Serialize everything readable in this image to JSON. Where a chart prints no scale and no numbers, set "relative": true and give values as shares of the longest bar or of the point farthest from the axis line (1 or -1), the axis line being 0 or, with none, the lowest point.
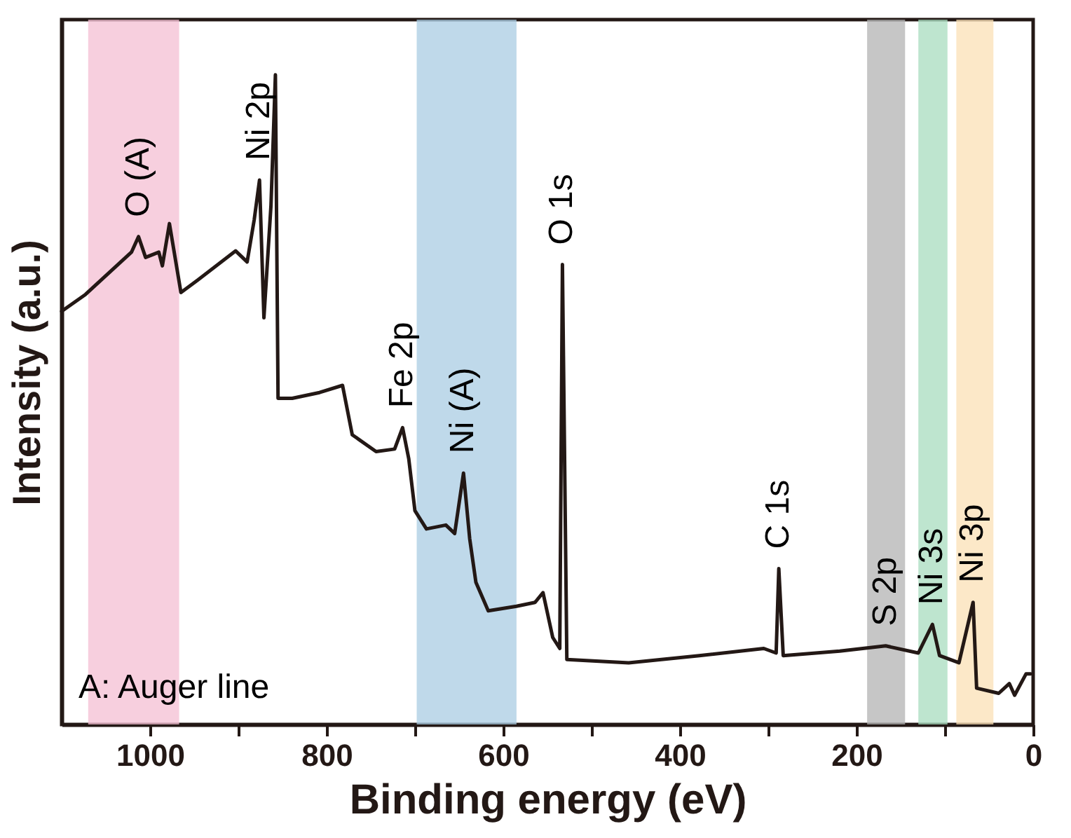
{
  "chart_data": {
    "type": "line",
    "relative": true,
    "xlabel": "Binding energy (eV)",
    "ylabel": "Intensity (a.u.)",
    "xlim": [
      1100,
      0
    ],
    "xticks": [
      1000,
      {
        "value": 900,
        "label": null
      },
      800,
      {
        "value": 700,
        "label": null
      },
      600,
      {
        "value": 500,
        "label": null
      },
      400,
      {
        "value": 300,
        "label": null
      },
      200,
      {
        "value": 100,
        "label": null
      },
      0
    ],
    "x": [
      1100,
      1073,
      1021,
      1013,
      1005,
      990,
      986,
      978,
      965,
      946,
      903,
      890,
      882,
      876,
      871,
      863,
      858,
      855,
      839,
      808,
      782,
      771,
      744,
      723,
      714,
      707,
      700,
      687,
      665,
      655,
      645,
      638,
      631,
      617,
      585,
      564,
      555,
      544,
      536,
      533,
      528,
      458,
      378,
      305,
      291,
      288,
      283,
      219,
      167,
      130,
      114,
      106,
      84,
      68,
      64,
      39,
      27,
      21,
      8,
      3
    ],
    "series": [
      {
        "color": "#231815",
        "values": [
          0.636,
          0.662,
          0.727,
          0.751,
          0.719,
          0.727,
          0.706,
          0.771,
          0.665,
          0.684,
          0.729,
          0.712,
          0.777,
          0.838,
          0.626,
          0.799,
          1.0,
          0.502,
          0.502,
          0.511,
          0.522,
          0.446,
          0.42,
          0.424,
          0.457,
          0.409,
          0.329,
          0.301,
          0.307,
          0.294,
          0.387,
          0.286,
          0.219,
          0.175,
          0.182,
          0.188,
          0.203,
          0.134,
          0.117,
          0.708,
          0.1,
          0.095,
          0.106,
          0.117,
          0.11,
          0.24,
          0.106,
          0.113,
          0.121,
          0.11,
          0.154,
          0.106,
          0.095,
          0.188,
          0.056,
          0.048,
          0.063,
          0.045,
          0.078,
          0.078
        ]
      }
    ],
    "bands": [
      {
        "axis": "x",
        "from": 1070,
        "to": 967,
        "color": "#f4bfd3"
      },
      {
        "axis": "x",
        "from": 698,
        "to": 585,
        "color": "#a9cce3"
      },
      {
        "axis": "x",
        "from": 188,
        "to": 145,
        "color": "#b3b3b3"
      },
      {
        "axis": "x",
        "from": 130,
        "to": 97,
        "color": "#a8dcbf"
      },
      {
        "axis": "x",
        "from": 87,
        "to": 45,
        "color": "#fbe0b5"
      }
    ],
    "annotations": [
      {
        "text": "O (A)",
        "x": 1013,
        "y": 0.751
      },
      {
        "text": "Ni 2p",
        "x": 876,
        "y": 0.838
      },
      {
        "text": "O 1s",
        "x": 533,
        "y": 0.708
      },
      {
        "text": "Fe 2p",
        "x": 714,
        "y": 0.457
      },
      {
        "text": "Ni (A)",
        "x": 645,
        "y": 0.387
      },
      {
        "text": "C 1s",
        "x": 288,
        "y": 0.24
      },
      {
        "text": "S 2p",
        "x": 167,
        "y": 0.121
      },
      {
        "text": "Ni 3s",
        "x": 114,
        "y": 0.154
      },
      {
        "text": "Ni 3p",
        "x": 68,
        "y": 0.188
      },
      "A: Auger line"
    ]
  }
}
